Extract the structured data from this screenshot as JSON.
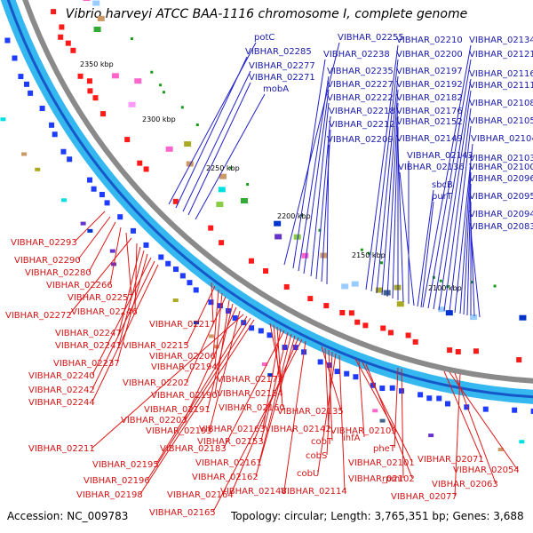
{
  "title": "Vibrio harveyi ATCC BAA-1116 chromosome I, complete genome",
  "footer": {
    "accession": "Accession: NC_009783",
    "summary": "Topology: circular; Length: 3,765,351 bp; Genes: 3,688"
  },
  "scale_labels": [
    "2350 kbp",
    "2300 kbp",
    "2250 kbp",
    "2200 kbp",
    "2150 kbp",
    "2100 kbp"
  ],
  "colors": {
    "forward_strand": "#1e3cff",
    "reverse_strand": "#ff1a1a",
    "backbone": "#8a8a8a",
    "track": "#35b8f0",
    "label_forward": "#1a1aa8",
    "label_reverse": "#d41414"
  },
  "labels_forward": [
    "potC",
    "VIBHAR_02285",
    "VIBHAR_02277",
    "VIBHAR_02271",
    "mobA",
    "VIBHAR_02255",
    "VIBHAR_02238",
    "VIBHAR_02235",
    "VIBHAR_02227",
    "VIBHAR_02222",
    "VIBHAR_02218",
    "VIBHAR_02212",
    "VIBHAR_02209",
    "VIBHAR_02210",
    "VIBHAR_02200",
    "VIBHAR_02197",
    "VIBHAR_02192",
    "VIBHAR_02182",
    "VIBHAR_02176",
    "VIBHAR_02152",
    "VIBHAR_02149",
    "VIBHAR_02143",
    "VIBHAR_02136",
    "VIBHAR_02134",
    "VIBHAR_02121",
    "VIBHAR_02116",
    "VIBHAR_02111",
    "VIBHAR_02108",
    "VIBHAR_02105",
    "VIBHAR_02104",
    "VIBHAR_02103",
    "VIBHAR_02100",
    "VIBHAR_02096",
    "VIBHAR_02095",
    "VIBHAR_02094",
    "VIBHAR_02083",
    "sbcB",
    "purT"
  ],
  "labels_reverse": [
    "VIBHAR_02293",
    "VIBHAR_02290",
    "VIBHAR_02280",
    "VIBHAR_02266",
    "VIBHAR_02257",
    "VIBHAR_02272",
    "VIBHAR_02246",
    "VIBHAR_02247",
    "VIBHAR_02241",
    "VIBHAR_02237",
    "VIBHAR_02240",
    "VIBHAR_02242",
    "VIBHAR_02244",
    "VIBHAR_02217",
    "VIBHAR_02215",
    "VIBHAR_02206",
    "VIBHAR_02194",
    "VIBHAR_02202",
    "VIBHAR_02190",
    "VIBHAR_02191",
    "VIBHAR_02203",
    "VIBHAR_02193",
    "VIBHAR_02211",
    "VIBHAR_02195",
    "VIBHAR_02196",
    "VIBHAR_02198",
    "VIBHAR_02173",
    "VIBHAR_02154",
    "VIBHAR_02160",
    "VIBHAR_02163",
    "VIBHAR_02183",
    "VIBHAR_02153",
    "VIBHAR_02161",
    "VIBHAR_02162",
    "VIBHAR_02164",
    "VIBHAR_02165",
    "VIBHAR_02148",
    "VIBHAR_02135",
    "VIBHAR_02142",
    "cobT",
    "cobS",
    "cobU",
    "VIBHAR_02114",
    "VIBHAR_02109",
    "ihfA",
    "VIBHAR_02101",
    "VIBHAR_02102",
    "pheT",
    "rpmI",
    "VIBHAR_02071",
    "VIBHAR_02054",
    "VIBHAR_02063",
    "VIBHAR_02077"
  ]
}
